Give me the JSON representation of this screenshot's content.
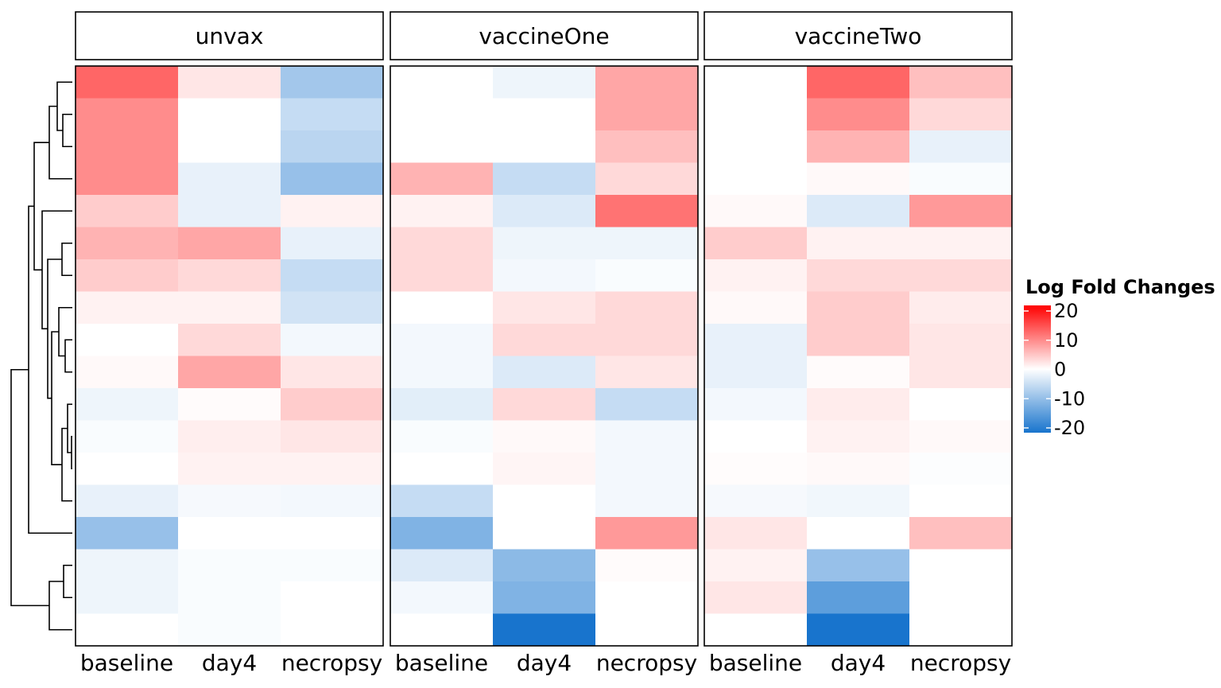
{
  "chart_data": {
    "type": "heatmap",
    "title": "",
    "facets": [
      "unvax",
      "vaccineOne",
      "vaccineTwo"
    ],
    "columns": [
      "baseline",
      "day4",
      "necropsy"
    ],
    "legend": {
      "title": "Log Fold Changes",
      "ticks": [
        20,
        10,
        0,
        -10,
        -20
      ],
      "tick_labels": [
        "20",
        "10",
        "0",
        "-10",
        "-20"
      ],
      "range": [
        -20,
        20
      ],
      "low_color": "#1874CD",
      "mid_color": "#FFFFFF",
      "high_color": "#FF0000",
      "placement": "right"
    },
    "dendrogram": "rows (left)",
    "rows": 18,
    "values": {
      "unvax": [
        [
          12,
          2,
          -8
        ],
        [
          9,
          0,
          -5
        ],
        [
          9,
          0,
          -6
        ],
        [
          9,
          -2,
          -9
        ],
        [
          4,
          -2,
          1
        ],
        [
          6,
          7,
          -2
        ],
        [
          4,
          3,
          -5
        ],
        [
          1,
          1,
          -4
        ],
        [
          0,
          3,
          -1
        ],
        [
          0.5,
          7,
          2
        ],
        [
          -1.5,
          0.3,
          4
        ],
        [
          -0.5,
          1.3,
          2
        ],
        [
          0,
          1,
          1
        ],
        [
          -2,
          -0.8,
          -1
        ],
        [
          -9,
          0,
          0
        ],
        [
          -1.5,
          -0.5,
          -0.5
        ],
        [
          -1.5,
          -0.5,
          0
        ],
        [
          0,
          -0.5,
          0
        ]
      ],
      "vaccineOne": [
        [
          0,
          -1.5,
          7
        ],
        [
          0,
          0,
          7
        ],
        [
          0,
          0,
          5
        ],
        [
          6,
          -5,
          3
        ],
        [
          1,
          -3,
          11
        ],
        [
          3,
          -1.5,
          -1.5
        ],
        [
          3,
          -1,
          -0.5
        ],
        [
          0,
          2,
          3
        ],
        [
          -1,
          3,
          3
        ],
        [
          -1,
          -3,
          2
        ],
        [
          -2.5,
          3,
          -5
        ],
        [
          -0.5,
          0.5,
          -1
        ],
        [
          0,
          0.8,
          -1
        ],
        [
          -5,
          0,
          -1
        ],
        [
          -11,
          0,
          8
        ],
        [
          -3,
          -10,
          0.3
        ],
        [
          -1,
          -11,
          0
        ],
        [
          0,
          -20,
          0
        ]
      ],
      "vaccineTwo": [
        [
          0,
          12,
          5
        ],
        [
          0,
          9,
          3
        ],
        [
          0,
          6,
          -2
        ],
        [
          0,
          0.5,
          -0.5
        ],
        [
          0.5,
          -3,
          8
        ],
        [
          4,
          1,
          1
        ],
        [
          1,
          3,
          3
        ],
        [
          0.5,
          4,
          1.5
        ],
        [
          -2,
          4,
          2
        ],
        [
          -2,
          0.3,
          2
        ],
        [
          -1,
          1.5,
          0
        ],
        [
          0,
          1,
          0.5
        ],
        [
          0.2,
          0.5,
          -0.3
        ],
        [
          -0.8,
          -1.2,
          0
        ],
        [
          2,
          0,
          5
        ],
        [
          1,
          -9,
          0
        ],
        [
          2,
          -14,
          0
        ],
        [
          0,
          -21,
          0
        ]
      ]
    }
  }
}
